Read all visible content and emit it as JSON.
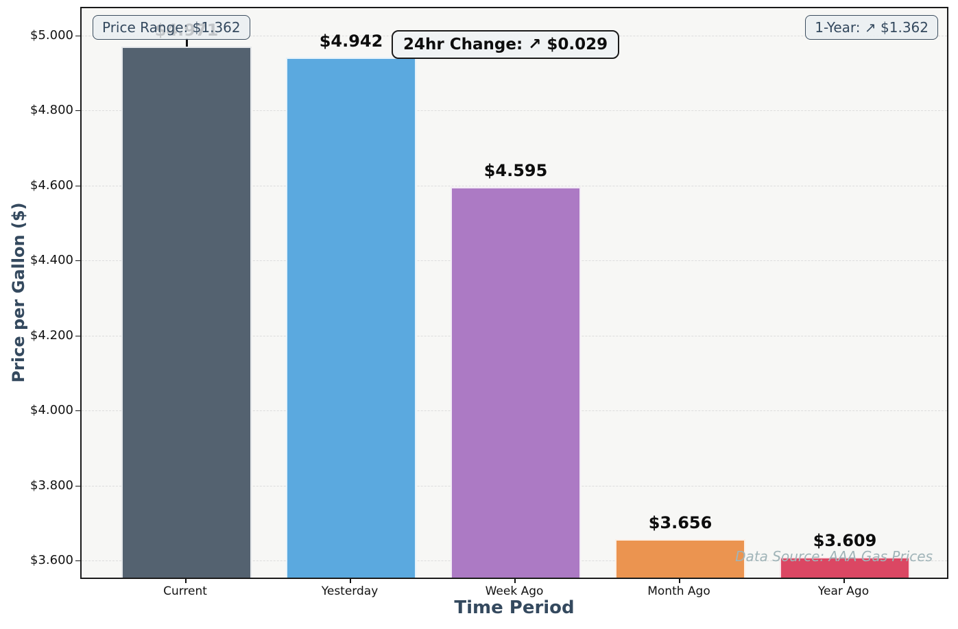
{
  "chart_data": {
    "type": "bar",
    "categories": [
      "Current",
      "Yesterday",
      "Week Ago",
      "Month Ago",
      "Year Ago"
    ],
    "values": [
      4.971,
      4.942,
      4.595,
      3.656,
      3.609
    ],
    "value_labels": [
      "$4.971",
      "$4.942",
      "$4.595",
      "$3.656",
      "$3.609"
    ],
    "bar_colors": [
      "#546270",
      "#5BA9DF",
      "#AC7AC4",
      "#EB9450",
      "#DB4763"
    ],
    "xlabel": "Time Period",
    "ylabel": "Price per Gallon ($)",
    "ylim": [
      3.5545,
      5.0727
    ],
    "yticks": [
      5.0,
      4.8,
      4.6,
      4.4,
      4.2,
      4.0,
      3.8,
      3.6
    ],
    "ytick_labels": [
      "$5.000",
      "$4.800",
      "$4.600",
      "$4.400",
      "$4.200",
      "$4.000",
      "$3.800",
      "$3.600"
    ],
    "grid": "horizontal dashed",
    "legend": "none",
    "error_whisker_category": "Current"
  },
  "annotations": {
    "price_range_badge": "Price Range: $1.362",
    "change_24hr_badge": "24hr Change: ↗ $0.029",
    "one_year_badge": "1-Year: ↗ $1.362",
    "watermark": "Data Source: AAA Gas Prices"
  },
  "colors": {
    "axis_title": "#34495E",
    "plot_background": "#f7f7f5",
    "figure_background": "#ffffff",
    "grid": "#dcdcdc",
    "value_label": "#0d0d0d",
    "watermark": "#a0b4b8",
    "badge_border_dark": "#1a1a1a",
    "badge_border_slate": "#3b4d5e"
  }
}
